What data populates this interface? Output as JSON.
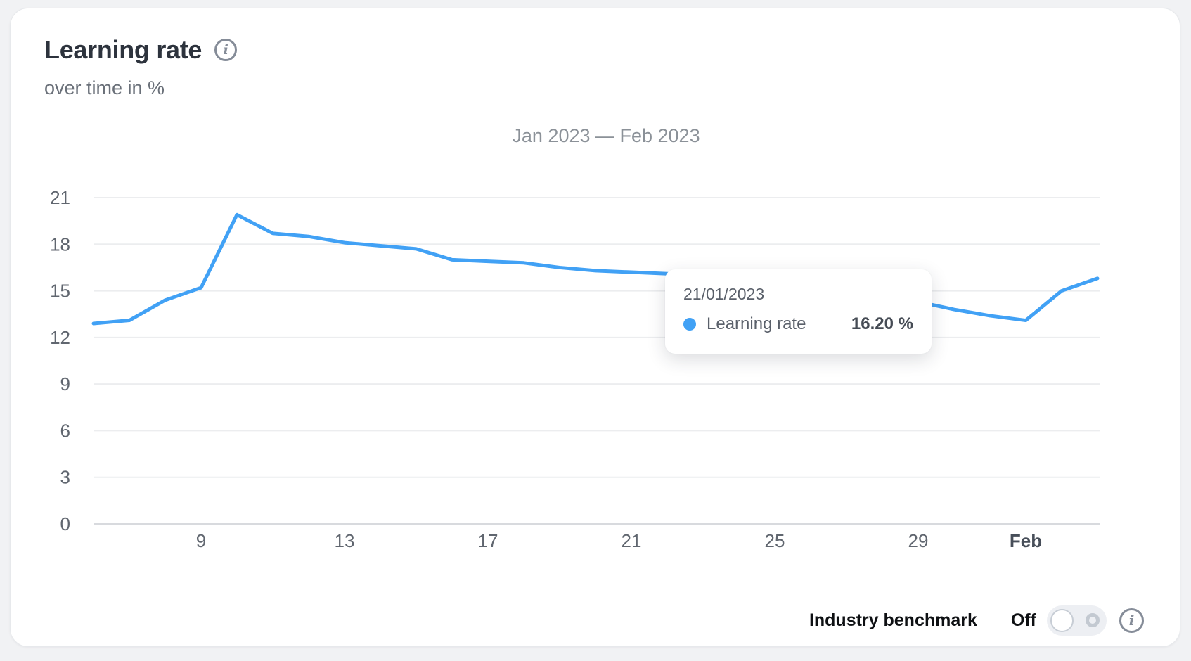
{
  "card": {
    "title": "Learning rate",
    "subtitle": "over time in %"
  },
  "icons": {
    "title_info": "info-icon",
    "benchmark_info": "info-icon",
    "info_glyph": "i"
  },
  "chart_data": {
    "type": "line",
    "title": "Jan 2023 — Feb 2023",
    "xlabel": "",
    "ylabel": "",
    "unit": "%",
    "ylim": [
      0,
      21
    ],
    "y_ticks": [
      0,
      3,
      6,
      9,
      12,
      15,
      18,
      21
    ],
    "grid": true,
    "legend_position": "none",
    "x": [
      "Jan 6",
      "Jan 7",
      "Jan 8",
      "Jan 9",
      "Jan 10",
      "Jan 11",
      "Jan 12",
      "Jan 13",
      "Jan 14",
      "Jan 15",
      "Jan 16",
      "Jan 17",
      "Jan 18",
      "Jan 19",
      "Jan 20",
      "Jan 21",
      "Jan 22",
      "Jan 23",
      "Jan 24",
      "Jan 25",
      "Jan 26",
      "Jan 27",
      "Jan 28",
      "Jan 29",
      "Jan 30",
      "Jan 31",
      "Feb 1",
      "Feb 2",
      "Feb 3"
    ],
    "x_tick_labels": [
      {
        "label": "9",
        "index": 3,
        "bold": false
      },
      {
        "label": "13",
        "index": 7,
        "bold": false
      },
      {
        "label": "17",
        "index": 11,
        "bold": false
      },
      {
        "label": "21",
        "index": 15,
        "bold": false
      },
      {
        "label": "25",
        "index": 19,
        "bold": false
      },
      {
        "label": "29",
        "index": 23,
        "bold": false
      },
      {
        "label": "Feb",
        "index": 26,
        "bold": true
      }
    ],
    "series": [
      {
        "name": "Learning rate",
        "color": "#41a1f5",
        "values": [
          12.9,
          13.1,
          14.4,
          15.2,
          19.9,
          18.7,
          18.5,
          18.1,
          17.9,
          17.7,
          17.0,
          16.9,
          16.8,
          16.5,
          16.3,
          16.2,
          16.1,
          15.8,
          15.5,
          15.2,
          14.9,
          14.7,
          14.5,
          14.3,
          13.8,
          13.4,
          13.1,
          15.0,
          15.8
        ]
      }
    ]
  },
  "tooltip": {
    "date": "21/01/2023",
    "series_label": "Learning rate",
    "value": "16.20 %",
    "dot_color": "#41a1f5"
  },
  "benchmark": {
    "label": "Industry benchmark",
    "state_label": "Off",
    "toggle_state": "off"
  },
  "colors": {
    "line": "#41a1f5",
    "grid": "#ecedef",
    "axis": "#d8dade",
    "tick_text": "#60666f",
    "tick_text_bold": "#474e59",
    "title_text": "#2d333d",
    "subtitle_text": "#6a7079",
    "chart_title_text": "#8b9198",
    "card_bg": "#ffffff",
    "page_bg": "#f1f2f4"
  }
}
